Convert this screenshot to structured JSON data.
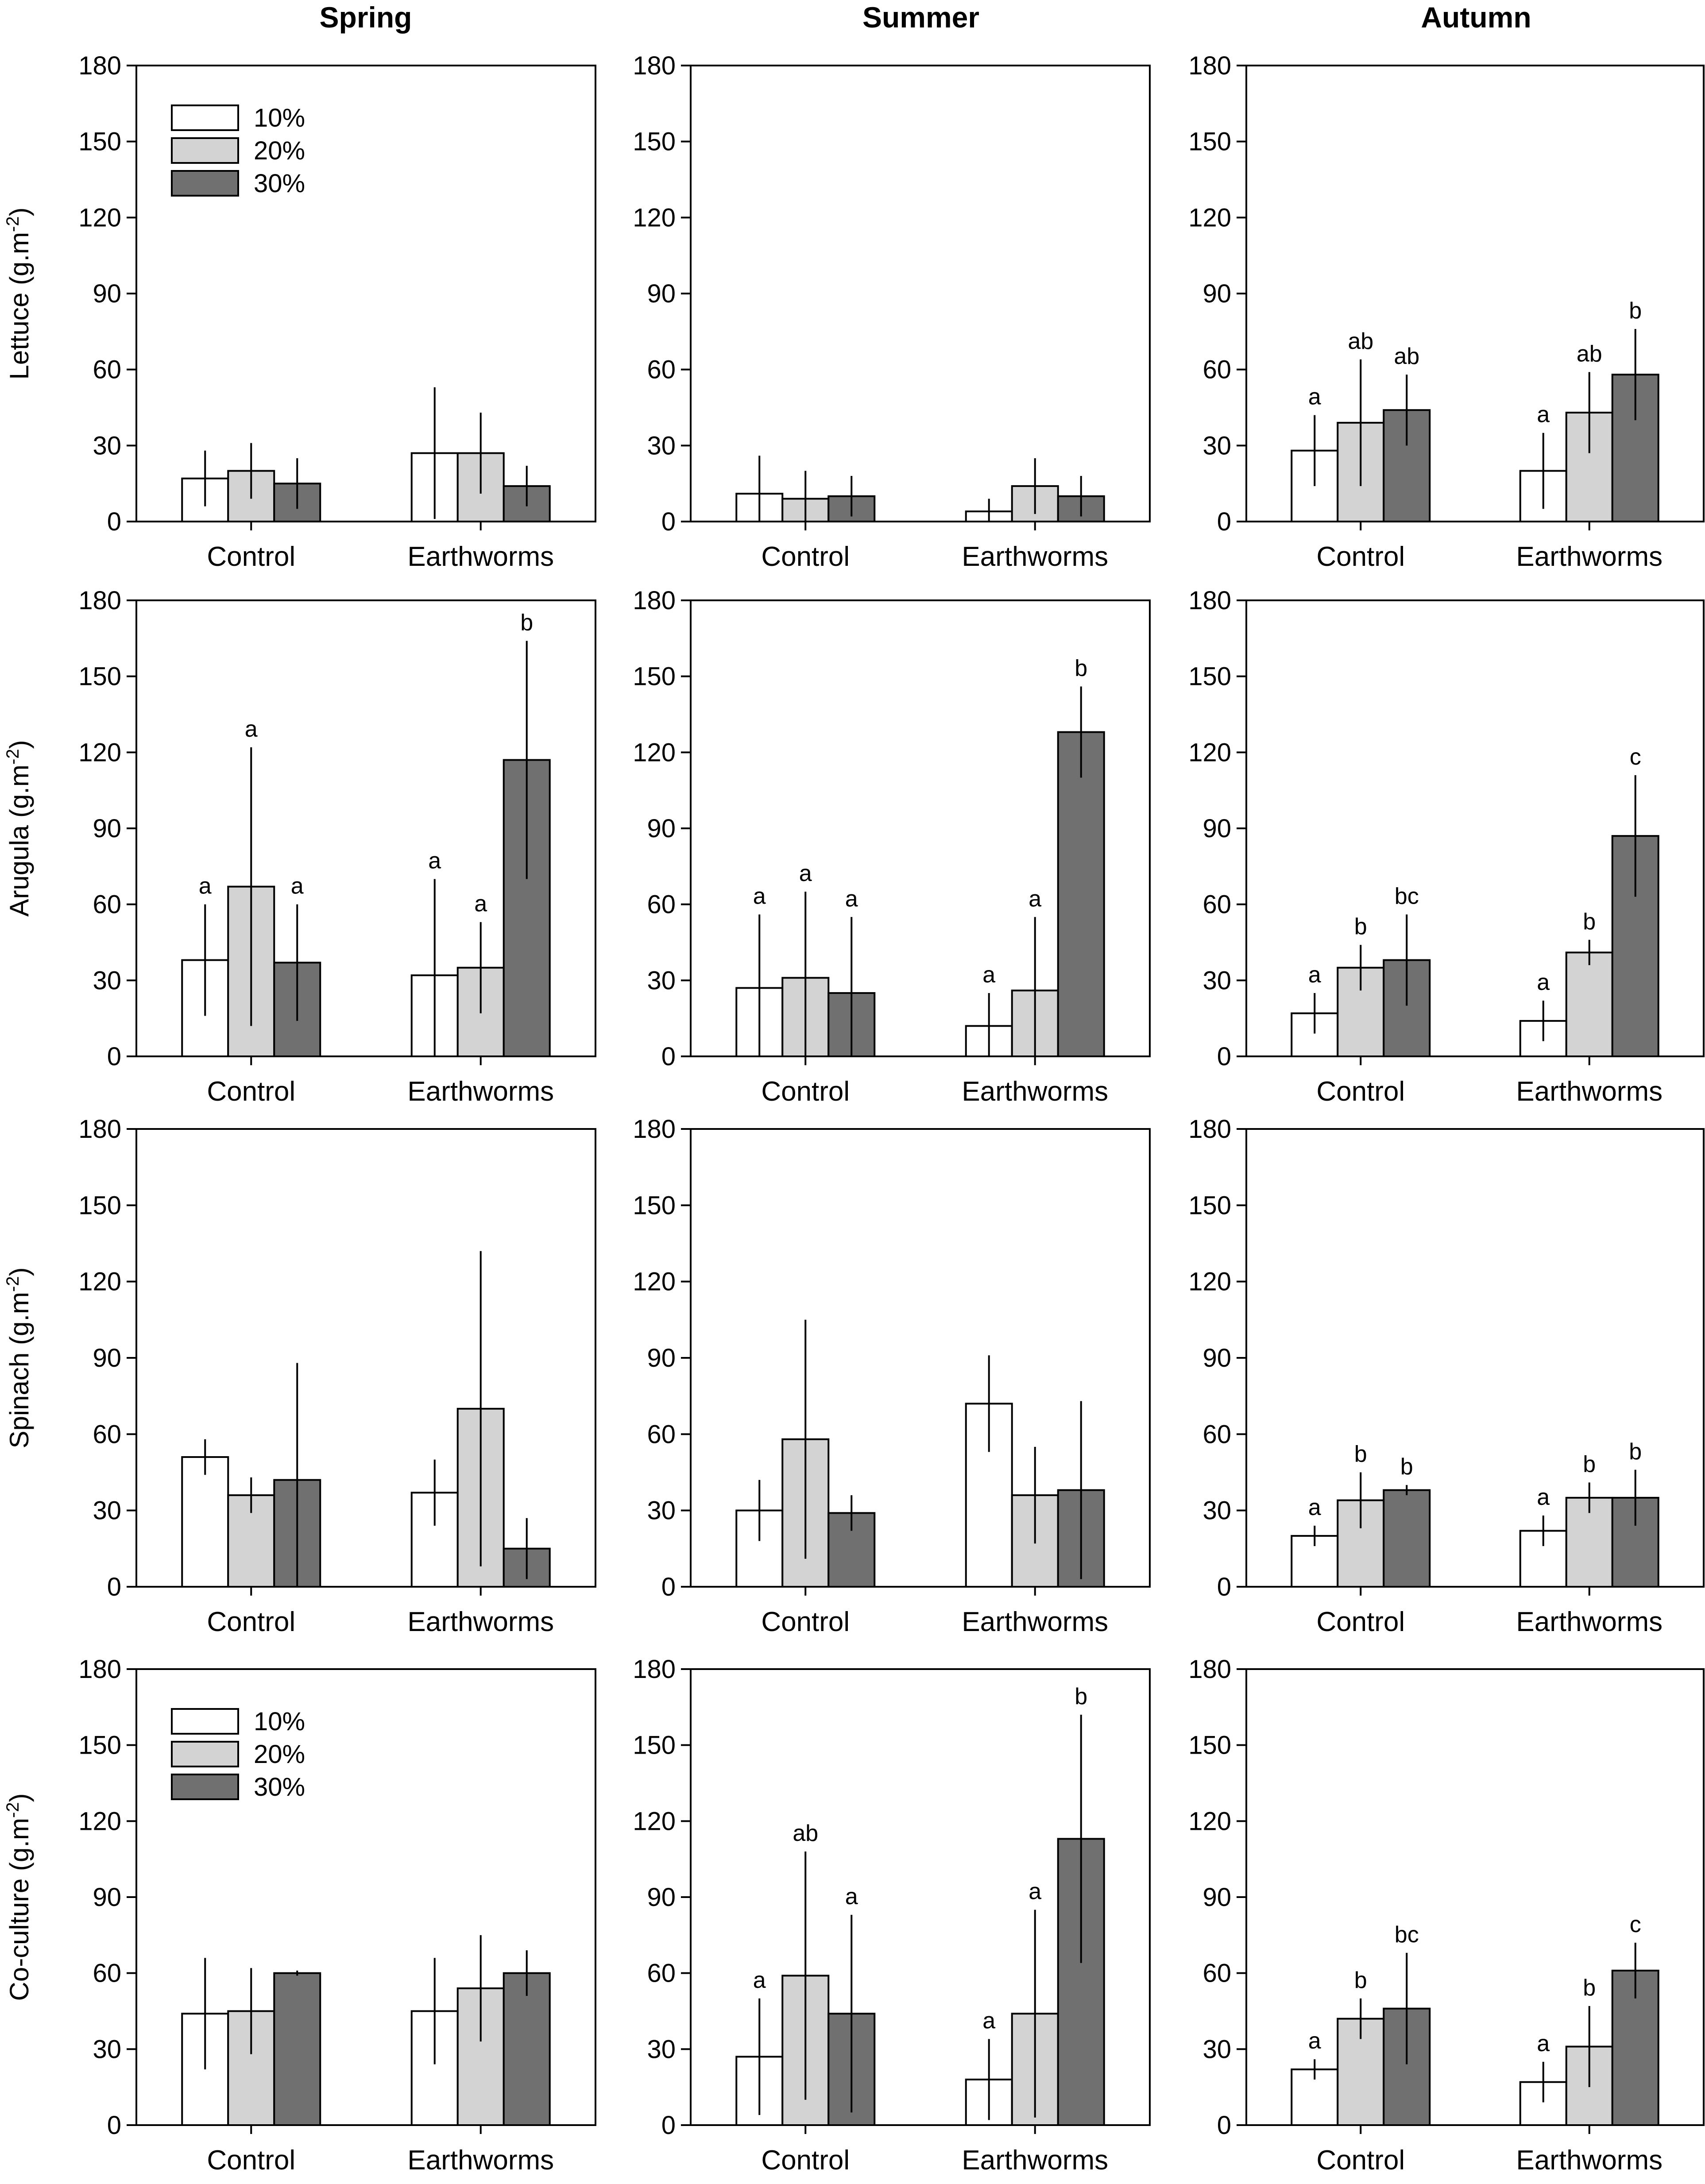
{
  "figure": {
    "seasons": [
      "Spring",
      "Summer",
      "Autumn"
    ],
    "categories": [
      "Control",
      "Earthworms"
    ],
    "y_ticks": [
      "0",
      "30",
      "60",
      "90",
      "120",
      "150",
      "180"
    ],
    "legend": [
      {
        "label": "10%",
        "color": "#ffffff"
      },
      {
        "label": "20%",
        "color": "#d3d3d3"
      },
      {
        "label": "30%",
        "color": "#707070"
      }
    ],
    "rows": [
      {
        "ylabel_main": "Lettuce (g.m",
        "ylabel_sup": "-2",
        "ylabel_end": ")"
      },
      {
        "ylabel_main": "Arugula (g.m",
        "ylabel_sup": "-2",
        "ylabel_end": ")"
      },
      {
        "ylabel_main": "Spinach (g.m",
        "ylabel_sup": "-2",
        "ylabel_end": ")"
      },
      {
        "ylabel_main": "Co-culture (g.m",
        "ylabel_sup": "-2",
        "ylabel_end": ")"
      }
    ]
  },
  "chart_data": [
    {
      "type": "bar",
      "crop": "Lettuce",
      "season": "Spring",
      "ylim": [
        0,
        180
      ],
      "legend": true,
      "series": [
        {
          "name": "10%",
          "values": [
            17,
            27
          ],
          "errors": [
            11,
            26
          ],
          "labels": [
            "",
            ""
          ]
        },
        {
          "name": "20%",
          "values": [
            20,
            27
          ],
          "errors": [
            11,
            16
          ],
          "labels": [
            "",
            ""
          ]
        },
        {
          "name": "30%",
          "values": [
            15,
            14
          ],
          "errors": [
            10,
            8
          ],
          "labels": [
            "",
            ""
          ]
        }
      ]
    },
    {
      "type": "bar",
      "crop": "Lettuce",
      "season": "Summer",
      "ylim": [
        0,
        180
      ],
      "legend": false,
      "series": [
        {
          "name": "10%",
          "values": [
            11,
            4
          ],
          "errors": [
            15,
            5
          ],
          "labels": [
            "",
            ""
          ]
        },
        {
          "name": "20%",
          "values": [
            9,
            14
          ],
          "errors": [
            11,
            11
          ],
          "labels": [
            "",
            ""
          ]
        },
        {
          "name": "30%",
          "values": [
            10,
            10
          ],
          "errors": [
            8,
            8
          ],
          "labels": [
            "",
            ""
          ]
        }
      ]
    },
    {
      "type": "bar",
      "crop": "Lettuce",
      "season": "Autumn",
      "ylim": [
        0,
        180
      ],
      "legend": false,
      "series": [
        {
          "name": "10%",
          "values": [
            28,
            20
          ],
          "errors": [
            14,
            15
          ],
          "labels": [
            "a",
            "a"
          ]
        },
        {
          "name": "20%",
          "values": [
            39,
            43
          ],
          "errors": [
            25,
            16
          ],
          "labels": [
            "ab",
            "ab"
          ]
        },
        {
          "name": "30%",
          "values": [
            44,
            58
          ],
          "errors": [
            14,
            18
          ],
          "labels": [
            "ab",
            "b"
          ]
        }
      ]
    },
    {
      "type": "bar",
      "crop": "Arugula",
      "season": "Spring",
      "ylim": [
        0,
        180
      ],
      "legend": false,
      "series": [
        {
          "name": "10%",
          "values": [
            38,
            32
          ],
          "errors": [
            22,
            38
          ],
          "labels": [
            "a",
            "a"
          ]
        },
        {
          "name": "20%",
          "values": [
            67,
            35
          ],
          "errors": [
            55,
            18
          ],
          "labels": [
            "a",
            "a"
          ]
        },
        {
          "name": "30%",
          "values": [
            37,
            117
          ],
          "errors": [
            23,
            47
          ],
          "labels": [
            "a",
            "b"
          ]
        }
      ]
    },
    {
      "type": "bar",
      "crop": "Arugula",
      "season": "Summer",
      "ylim": [
        0,
        180
      ],
      "legend": false,
      "series": [
        {
          "name": "10%",
          "values": [
            27,
            12
          ],
          "errors": [
            29,
            13
          ],
          "labels": [
            "a",
            "a"
          ]
        },
        {
          "name": "20%",
          "values": [
            31,
            26
          ],
          "errors": [
            34,
            29
          ],
          "labels": [
            "a",
            "a"
          ]
        },
        {
          "name": "30%",
          "values": [
            25,
            128
          ],
          "errors": [
            30,
            18
          ],
          "labels": [
            "a",
            "b"
          ]
        }
      ]
    },
    {
      "type": "bar",
      "crop": "Arugula",
      "season": "Autumn",
      "ylim": [
        0,
        180
      ],
      "legend": false,
      "series": [
        {
          "name": "10%",
          "values": [
            17,
            14
          ],
          "errors": [
            8,
            8
          ],
          "labels": [
            "a",
            "a"
          ]
        },
        {
          "name": "20%",
          "values": [
            35,
            41
          ],
          "errors": [
            9,
            5
          ],
          "labels": [
            "b",
            "b"
          ]
        },
        {
          "name": "30%",
          "values": [
            38,
            87
          ],
          "errors": [
            18,
            24
          ],
          "labels": [
            "bc",
            "c"
          ]
        }
      ]
    },
    {
      "type": "bar",
      "crop": "Spinach",
      "season": "Spring",
      "ylim": [
        0,
        180
      ],
      "legend": false,
      "series": [
        {
          "name": "10%",
          "values": [
            51,
            37
          ],
          "errors": [
            7,
            13
          ],
          "labels": [
            "",
            ""
          ]
        },
        {
          "name": "20%",
          "values": [
            36,
            70
          ],
          "errors": [
            7,
            62
          ],
          "labels": [
            "",
            ""
          ]
        },
        {
          "name": "30%",
          "values": [
            42,
            15
          ],
          "errors": [
            46,
            12
          ],
          "labels": [
            "",
            ""
          ]
        }
      ]
    },
    {
      "type": "bar",
      "crop": "Spinach",
      "season": "Summer",
      "ylim": [
        0,
        180
      ],
      "legend": false,
      "series": [
        {
          "name": "10%",
          "values": [
            30,
            72
          ],
          "errors": [
            12,
            19
          ],
          "labels": [
            "",
            ""
          ]
        },
        {
          "name": "20%",
          "values": [
            58,
            36
          ],
          "errors": [
            47,
            19
          ],
          "labels": [
            "",
            ""
          ]
        },
        {
          "name": "30%",
          "values": [
            29,
            38
          ],
          "errors": [
            7,
            35
          ],
          "labels": [
            "",
            ""
          ]
        }
      ]
    },
    {
      "type": "bar",
      "crop": "Spinach",
      "season": "Autumn",
      "ylim": [
        0,
        180
      ],
      "legend": false,
      "series": [
        {
          "name": "10%",
          "values": [
            20,
            22
          ],
          "errors": [
            4,
            6
          ],
          "labels": [
            "a",
            "a"
          ]
        },
        {
          "name": "20%",
          "values": [
            34,
            35
          ],
          "errors": [
            11,
            6
          ],
          "labels": [
            "b",
            "b"
          ]
        },
        {
          "name": "30%",
          "values": [
            38,
            35
          ],
          "errors": [
            2,
            11
          ],
          "labels": [
            "b",
            "b"
          ]
        }
      ]
    },
    {
      "type": "bar",
      "crop": "Co-culture",
      "season": "Spring",
      "ylim": [
        0,
        180
      ],
      "legend": true,
      "series": [
        {
          "name": "10%",
          "values": [
            44,
            45
          ],
          "errors": [
            22,
            21
          ],
          "labels": [
            "",
            ""
          ]
        },
        {
          "name": "20%",
          "values": [
            45,
            54
          ],
          "errors": [
            17,
            21
          ],
          "labels": [
            "",
            ""
          ]
        },
        {
          "name": "30%",
          "values": [
            60,
            60
          ],
          "errors": [
            1,
            9
          ],
          "labels": [
            "",
            ""
          ]
        }
      ]
    },
    {
      "type": "bar",
      "crop": "Co-culture",
      "season": "Summer",
      "ylim": [
        0,
        180
      ],
      "legend": false,
      "series": [
        {
          "name": "10%",
          "values": [
            27,
            18
          ],
          "errors": [
            23,
            16
          ],
          "labels": [
            "a",
            "a"
          ]
        },
        {
          "name": "20%",
          "values": [
            59,
            44
          ],
          "errors": [
            49,
            41
          ],
          "labels": [
            "ab",
            "a"
          ]
        },
        {
          "name": "30%",
          "values": [
            44,
            113
          ],
          "errors": [
            39,
            49
          ],
          "labels": [
            "a",
            "b"
          ]
        }
      ]
    },
    {
      "type": "bar",
      "crop": "Co-culture",
      "season": "Autumn",
      "ylim": [
        0,
        180
      ],
      "legend": false,
      "series": [
        {
          "name": "10%",
          "values": [
            22,
            17
          ],
          "errors": [
            4,
            8
          ],
          "labels": [
            "a",
            "a"
          ]
        },
        {
          "name": "20%",
          "values": [
            42,
            31
          ],
          "errors": [
            8,
            16
          ],
          "labels": [
            "b",
            "b"
          ]
        },
        {
          "name": "30%",
          "values": [
            46,
            61
          ],
          "errors": [
            22,
            11
          ],
          "labels": [
            "bc",
            "c"
          ]
        }
      ]
    }
  ]
}
